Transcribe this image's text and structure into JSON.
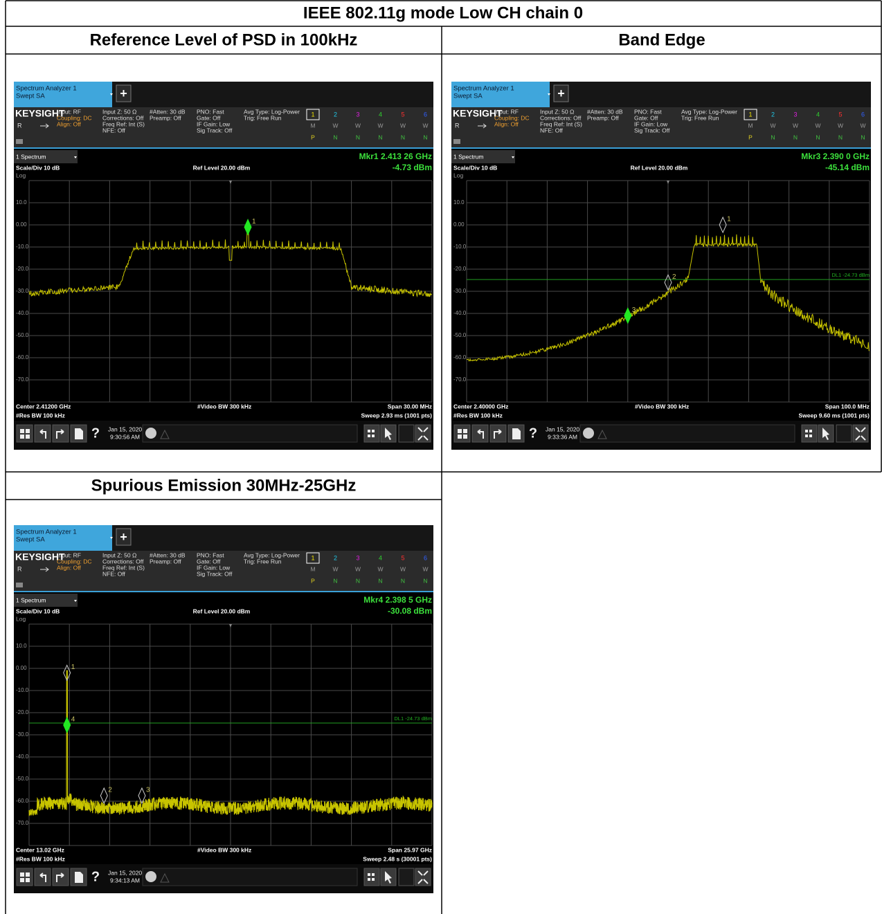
{
  "header": {
    "title": "IEEE 802.11g mode Low CH chain 0"
  },
  "sections": [
    {
      "title": "Reference Level of PSD in 100kHz"
    },
    {
      "title": "Band Edge"
    },
    {
      "title": "Spurious Emission 30MHz-25GHz"
    }
  ],
  "screens": [
    {
      "app": "Spectrum Analyzer 1",
      "mode": "Swept SA",
      "plus": "+",
      "brand": "KEYSIGHT",
      "input": "Input: RF",
      "coupling": "Coupling: DC",
      "align": "Align: Off",
      "r": "R",
      "settings": [
        [
          "Input Z: 50 Ω",
          "Corrections: Off",
          "Freq Ref: Int (S)",
          "NFE: Off"
        ],
        [
          "#Atten: 30 dB",
          "Preamp: Off"
        ],
        [
          "PNO: Fast",
          "Gate: Off",
          "IF Gain: Low",
          "Sig Track: Off"
        ],
        [
          "Avg Type: Log-Power",
          "Trig: Free Run"
        ]
      ],
      "traces": [
        "1",
        "2",
        "3",
        "4",
        "5",
        "6"
      ],
      "types": [
        "M",
        "W",
        "W",
        "W",
        "W",
        "W"
      ],
      "detectors": [
        "P",
        "N",
        "N",
        "N",
        "N",
        "N"
      ],
      "view": "1 Spectrum",
      "marker": "Mkr1 2.413 26 GHz",
      "marker_value": "-4.73 dBm",
      "scale": "Scale/Div 10 dB",
      "ref_level": "Ref Level 20.00 dBm",
      "log": "Log",
      "ylabels": [
        "10.0",
        "0.00",
        "-10.0",
        "-20.0",
        "-30.0",
        "-40.0",
        "-50.0",
        "-60.0",
        "-70.0"
      ],
      "marker_ids": [
        "1"
      ],
      "center": "Center 2.41200 GHz",
      "vbw": "#Video BW 300 kHz",
      "span": "Span 30.00 MHz",
      "rbw": "#Res BW 100 kHz",
      "sweep": "Sweep 2.93 ms (1001 pts)",
      "help": "?",
      "date": "Jan 15, 2020",
      "time": "9:30:56 AM"
    },
    {
      "app": "Spectrum Analyzer 1",
      "mode": "Swept SA",
      "plus": "+",
      "brand": "KEYSIGHT",
      "input": "Input: RF",
      "coupling": "Coupling: DC",
      "align": "Align: Off",
      "r": "R",
      "settings": [
        [
          "Input Z: 50 Ω",
          "Corrections: Off",
          "Freq Ref: Int (S)",
          "NFE: Off"
        ],
        [
          "#Atten: 30 dB",
          "Preamp: Off"
        ],
        [
          "PNO: Fast",
          "Gate: Off",
          "IF Gain: Low",
          "Sig Track: Off"
        ],
        [
          "Avg Type: Log-Power",
          "Trig: Free Run"
        ]
      ],
      "traces": [
        "1",
        "2",
        "3",
        "4",
        "5",
        "6"
      ],
      "types": [
        "M",
        "W",
        "W",
        "W",
        "W",
        "W"
      ],
      "detectors": [
        "P",
        "N",
        "N",
        "N",
        "N",
        "N"
      ],
      "view": "1 Spectrum",
      "marker": "Mkr3 2.390 0 GHz",
      "marker_value": "-45.14 dBm",
      "scale": "Scale/Div 10 dB",
      "ref_level": "Ref Level 20.00 dBm",
      "log": "Log",
      "ylabels": [
        "10.0",
        "0.00",
        "-10.0",
        "-20.0",
        "-30.0",
        "-40.0",
        "-50.0",
        "-60.0",
        "-70.0"
      ],
      "marker_ids": [
        "1",
        "2",
        "3"
      ],
      "display_line": "DL1 -24.73 dBm",
      "center": "Center 2.40000 GHz",
      "vbw": "#Video BW 300 kHz",
      "span": "Span 100.0 MHz",
      "rbw": "#Res BW 100 kHz",
      "sweep": "Sweep 9.60 ms (1001 pts)",
      "help": "?",
      "date": "Jan 15, 2020",
      "time": "9:33:36 AM"
    },
    {
      "app": "Spectrum Analyzer 1",
      "mode": "Swept SA",
      "plus": "+",
      "brand": "KEYSIGHT",
      "input": "Input: RF",
      "coupling": "Coupling: DC",
      "align": "Align: Off",
      "r": "R",
      "settings": [
        [
          "Input Z: 50 Ω",
          "Corrections: Off",
          "Freq Ref: Int (S)",
          "NFE: Off"
        ],
        [
          "#Atten: 30 dB",
          "Preamp: Off"
        ],
        [
          "PNO: Fast",
          "Gate: Off",
          "IF Gain: Low",
          "Sig Track: Off"
        ],
        [
          "Avg Type: Log-Power",
          "Trig: Free Run"
        ]
      ],
      "traces": [
        "1",
        "2",
        "3",
        "4",
        "5",
        "6"
      ],
      "types": [
        "M",
        "W",
        "W",
        "W",
        "W",
        "W"
      ],
      "detectors": [
        "P",
        "N",
        "N",
        "N",
        "N",
        "N"
      ],
      "view": "1 Spectrum",
      "marker": "Mkr4 2.398 5 GHz",
      "marker_value": "-30.08 dBm",
      "scale": "Scale/Div 10 dB",
      "ref_level": "Ref Level 20.00 dBm",
      "log": "Log",
      "ylabels": [
        "10.0",
        "0.00",
        "-10.0",
        "-20.0",
        "-30.0",
        "-40.0",
        "-50.0",
        "-60.0",
        "-70.0"
      ],
      "marker_ids": [
        "1",
        "2",
        "3",
        "4"
      ],
      "display_line": "DL1 -24.73 dBm",
      "center": "Center 13.02 GHz",
      "vbw": "#Video BW 300 kHz",
      "span": "Span 25.97 GHz",
      "rbw": "#Res BW 100 kHz",
      "sweep": "Sweep 2.48 s (30001 pts)",
      "help": "?",
      "date": "Jan 15, 2020",
      "time": "9:34:13 AM"
    }
  ]
}
